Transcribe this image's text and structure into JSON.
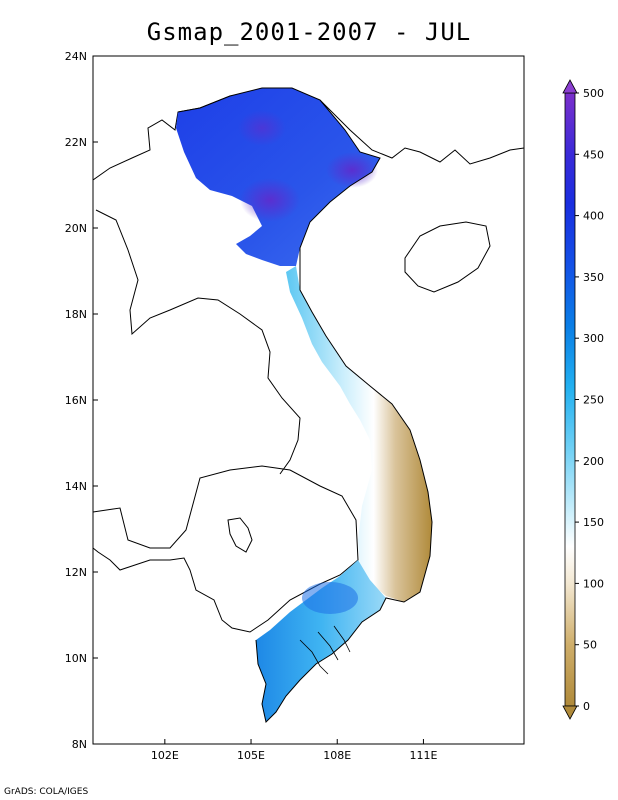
{
  "title": "Gsmap_2001-2007 - JUL",
  "footer": "GrADS: COLA/IGES",
  "map": {
    "lat_range": [
      8,
      24
    ],
    "lon_range": [
      99.5,
      114.5
    ],
    "lat_ticks": [
      "8N",
      "10N",
      "12N",
      "14N",
      "16N",
      "18N",
      "20N",
      "22N",
      "24N"
    ],
    "lon_ticks": [
      "102E",
      "105E",
      "108E",
      "111E"
    ]
  },
  "colorbar": {
    "range": [
      0,
      500
    ],
    "tick_labels": [
      "0",
      "50",
      "100",
      "150",
      "200",
      "250",
      "300",
      "350",
      "400",
      "450",
      "500"
    ],
    "end_arrows": true
  }
}
